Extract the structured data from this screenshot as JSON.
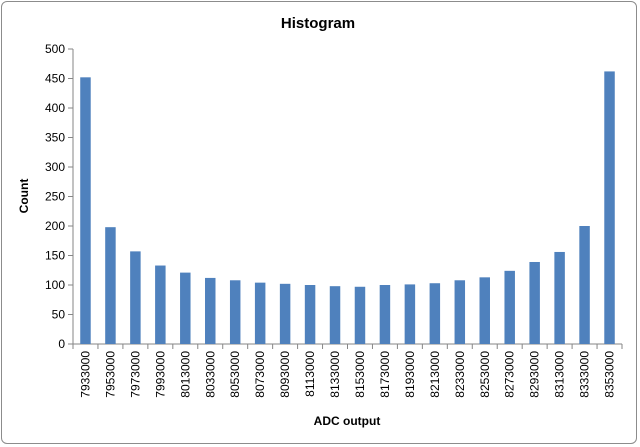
{
  "chart_data": {
    "type": "bar",
    "title": "Histogram",
    "xlabel": "ADC output",
    "ylabel": "Count",
    "ylim": [
      0,
      500
    ],
    "yticks": [
      0,
      50,
      100,
      150,
      200,
      250,
      300,
      350,
      400,
      450,
      500
    ],
    "grid": false,
    "legend": "none",
    "bar_color": "#4f81bd",
    "categories": [
      "7933000",
      "7953000",
      "7973000",
      "7993000",
      "8013000",
      "8033000",
      "8053000",
      "8073000",
      "8093000",
      "8113000",
      "8133000",
      "8153000",
      "8173000",
      "8193000",
      "8213000",
      "8233000",
      "8253000",
      "8273000",
      "8293000",
      "8313000",
      "8333000",
      "8353000"
    ],
    "values": [
      452,
      198,
      157,
      133,
      121,
      112,
      108,
      104,
      102,
      100,
      98,
      97,
      100,
      101,
      103,
      108,
      113,
      124,
      139,
      156,
      200,
      462
    ]
  }
}
